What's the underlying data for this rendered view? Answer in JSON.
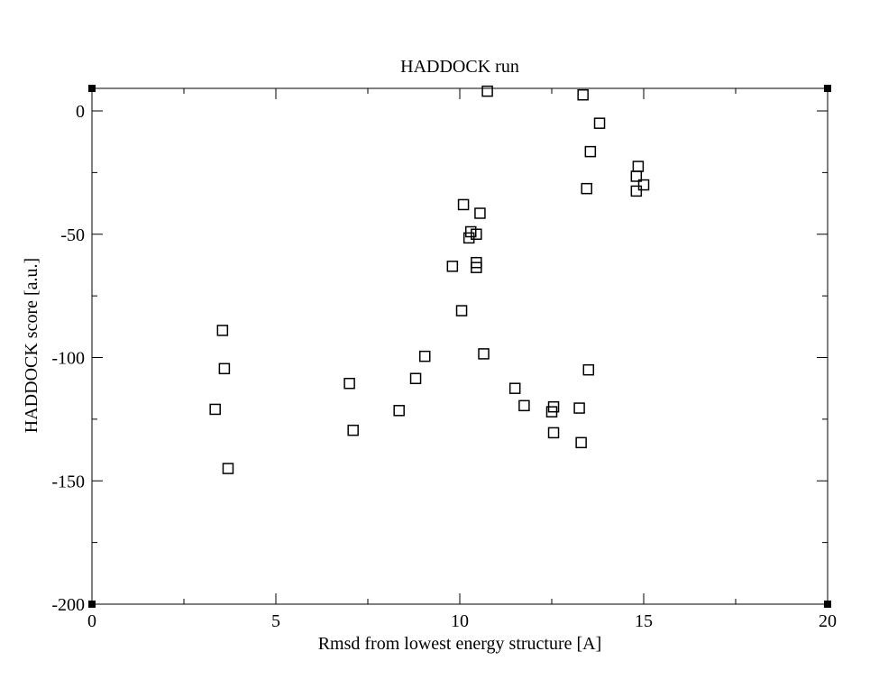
{
  "chart_data": {
    "type": "scatter",
    "title": "HADDOCK run",
    "xlabel": "Rmsd from lowest energy structure [A]",
    "ylabel": "HADDOCK score [a.u.]",
    "xlim": [
      0,
      20
    ],
    "ylim": [
      -200,
      9
    ],
    "x_ticks": [
      0,
      5,
      10,
      15,
      20
    ],
    "y_ticks": [
      0,
      -50,
      -100,
      -150,
      -200
    ],
    "x_minor_step": 2.5,
    "y_minor_step": 25,
    "grid": false,
    "marker": "open-square",
    "series": [
      {
        "points": [
          [
            3.35,
            -121
          ],
          [
            3.55,
            -89
          ],
          [
            3.6,
            -104.5
          ],
          [
            3.7,
            -145
          ],
          [
            7.0,
            -110.5
          ],
          [
            7.1,
            -129.5
          ],
          [
            8.35,
            -121.5
          ],
          [
            8.8,
            -108.5
          ],
          [
            9.05,
            -99.5
          ],
          [
            9.8,
            -63
          ],
          [
            10.05,
            -81
          ],
          [
            10.1,
            -38
          ],
          [
            10.25,
            -51.5
          ],
          [
            10.3,
            -49
          ],
          [
            10.45,
            -50
          ],
          [
            10.45,
            -61.5
          ],
          [
            10.45,
            -63.5
          ],
          [
            10.55,
            -41.5
          ],
          [
            10.65,
            -98.5
          ],
          [
            10.75,
            8
          ],
          [
            11.5,
            -112.5
          ],
          [
            11.75,
            -119.5
          ],
          [
            12.5,
            -122
          ],
          [
            12.55,
            -120
          ],
          [
            12.55,
            -130.5
          ],
          [
            13.25,
            -120.5
          ],
          [
            13.3,
            -134.5
          ],
          [
            13.35,
            6.5
          ],
          [
            13.45,
            -31.5
          ],
          [
            13.5,
            -105
          ],
          [
            13.55,
            -16.5
          ],
          [
            13.8,
            -5
          ],
          [
            14.8,
            -26.5
          ],
          [
            14.8,
            -32.5
          ],
          [
            14.85,
            -22.5
          ],
          [
            15.0,
            -30
          ]
        ]
      }
    ]
  }
}
